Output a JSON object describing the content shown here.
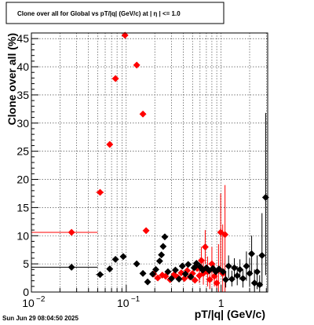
{
  "chart_data": {
    "type": "scatter",
    "title": "Clone  over all for Global vs pT/|q| (GeV/c) at |  η  | <= 1.0",
    "xlabel": "pT/|q| (GeV/c)",
    "ylabel": "Clone  over all (%)",
    "xscale": "log",
    "xlim": [
      0.01,
      3.1
    ],
    "ylim": [
      0,
      46
    ],
    "x_ticks": [
      {
        "v": 0.01,
        "label": "10"
      },
      {
        "v": 0.1,
        "label": "10"
      },
      {
        "v": 1,
        "label": "1"
      }
    ],
    "x_tick_exponents": [
      "−2",
      "−1",
      ""
    ],
    "y_ticks": [
      0,
      5,
      10,
      15,
      20,
      25,
      30,
      35,
      40,
      45
    ],
    "grid": true,
    "timestamp": "Sun Jun 29 08:04:50 2025",
    "series": [
      {
        "color": "#ff0000",
        "marker": "diamond",
        "points": [
          {
            "x": 0.0265,
            "y": 10.6,
            "xlo": 0.01,
            "xhi": 0.05
          },
          {
            "x": 0.053,
            "y": 17.7,
            "xlo": 0.048,
            "xhi": 0.058
          },
          {
            "x": 0.067,
            "y": 26.2
          },
          {
            "x": 0.077,
            "y": 37.9
          },
          {
            "x": 0.097,
            "y": 45.6
          },
          {
            "x": 0.129,
            "y": 40.3
          },
          {
            "x": 0.15,
            "y": 31.6
          },
          {
            "x": 0.162,
            "y": 10.9
          },
          {
            "x": 0.195,
            "y": 3.2
          },
          {
            "x": 0.215,
            "y": 2.5
          },
          {
            "x": 0.24,
            "y": 3.0
          },
          {
            "x": 0.26,
            "y": 2.8
          },
          {
            "x": 0.29,
            "y": 2.2
          },
          {
            "x": 0.32,
            "y": 3.1
          },
          {
            "x": 0.35,
            "y": 2.6
          },
          {
            "x": 0.38,
            "y": 3.4
          },
          {
            "x": 0.41,
            "y": 2.4
          },
          {
            "x": 0.44,
            "y": 3.8
          },
          {
            "x": 0.47,
            "y": 2.7
          },
          {
            "x": 0.5,
            "y": 3.3
          },
          {
            "x": 0.53,
            "y": 2.1
          },
          {
            "x": 0.56,
            "y": 4.2
          },
          {
            "x": 0.59,
            "y": 2.9,
            "ylo": 1.6,
            "yhi": 4.4
          },
          {
            "x": 0.62,
            "y": 5.6,
            "ylo": 3.4,
            "yhi": 8.0
          },
          {
            "x": 0.65,
            "y": 3.3,
            "ylo": 1.3,
            "yhi": 5.6
          },
          {
            "x": 0.68,
            "y": 8.0,
            "ylo": 5.0,
            "yhi": 11.0
          },
          {
            "x": 0.72,
            "y": 3.6,
            "ylo": 1.0,
            "yhi": 6.3
          },
          {
            "x": 0.76,
            "y": 2.2,
            "ylo": 0.5,
            "yhi": 4.0
          },
          {
            "x": 0.8,
            "y": 5.0,
            "ylo": 2.0,
            "yhi": 8.0
          },
          {
            "x": 0.85,
            "y": 2.8,
            "ylo": 1.0,
            "yhi": 4.8
          },
          {
            "x": 0.9,
            "y": 1.6,
            "ylo": 0.4,
            "yhi": 3.5
          },
          {
            "x": 0.94,
            "y": 3.9,
            "ylo": 0.0,
            "yhi": 8.5
          },
          {
            "x": 0.99,
            "y": 10.6,
            "ylo": 3.5,
            "yhi": 17.5
          },
          {
            "x": 1.04,
            "y": 3.3,
            "ylo": 0.0,
            "yhi": 12.0
          },
          {
            "x": 1.1,
            "y": 10.2,
            "ylo": 0.0,
            "yhi": 19.0
          }
        ]
      },
      {
        "color": "#000000",
        "marker": "diamond",
        "points": [
          {
            "x": 0.0265,
            "y": 4.4,
            "xlo": 0.01,
            "xhi": 0.05
          },
          {
            "x": 0.053,
            "y": 3.1,
            "xlo": 0.048,
            "xhi": 0.058
          },
          {
            "x": 0.067,
            "y": 4.1
          },
          {
            "x": 0.077,
            "y": 5.8
          },
          {
            "x": 0.093,
            "y": 6.3
          },
          {
            "x": 0.129,
            "y": 5.0
          },
          {
            "x": 0.15,
            "y": 3.3
          },
          {
            "x": 0.168,
            "y": 1.8
          },
          {
            "x": 0.19,
            "y": 3.2
          },
          {
            "x": 0.205,
            "y": 4.0
          },
          {
            "x": 0.225,
            "y": 5.5
          },
          {
            "x": 0.235,
            "y": 6.6
          },
          {
            "x": 0.245,
            "y": 8.1
          },
          {
            "x": 0.255,
            "y": 9.8
          },
          {
            "x": 0.275,
            "y": 3.6
          },
          {
            "x": 0.3,
            "y": 2.4
          },
          {
            "x": 0.33,
            "y": 3.9
          },
          {
            "x": 0.36,
            "y": 2.3
          },
          {
            "x": 0.39,
            "y": 4.6
          },
          {
            "x": 0.42,
            "y": 3.2
          },
          {
            "x": 0.45,
            "y": 4.9
          },
          {
            "x": 0.48,
            "y": 2.7
          },
          {
            "x": 0.52,
            "y": 4.3
          },
          {
            "x": 0.55,
            "y": 5.1
          },
          {
            "x": 0.6,
            "y": 4.5
          },
          {
            "x": 0.64,
            "y": 3.9
          },
          {
            "x": 0.7,
            "y": 4.3
          },
          {
            "x": 0.75,
            "y": 3.8
          },
          {
            "x": 0.82,
            "y": 4.2
          },
          {
            "x": 0.88,
            "y": 3.6
          },
          {
            "x": 0.95,
            "y": 4.1
          },
          {
            "x": 1.05,
            "y": 3.6
          },
          {
            "x": 1.12,
            "y": 2.2,
            "ylo": 0.8,
            "yhi": 3.5
          },
          {
            "x": 1.2,
            "y": 4.6,
            "ylo": 2.5,
            "yhi": 6.5
          },
          {
            "x": 1.3,
            "y": 2.3,
            "ylo": 1.0,
            "yhi": 3.8
          },
          {
            "x": 1.38,
            "y": 4.3,
            "ylo": 2.5,
            "yhi": 6.0
          },
          {
            "x": 1.48,
            "y": 2.9,
            "ylo": 1.2,
            "yhi": 4.6
          },
          {
            "x": 1.58,
            "y": 4.0,
            "ylo": 2.2,
            "yhi": 5.8
          },
          {
            "x": 1.7,
            "y": 2.4,
            "ylo": 0.8,
            "yhi": 4.0
          },
          {
            "x": 1.85,
            "y": 4.6,
            "ylo": 2.0,
            "yhi": 7.2
          },
          {
            "x": 2.0,
            "y": 3.3,
            "ylo": 1.0,
            "yhi": 6.0
          },
          {
            "x": 2.1,
            "y": 6.8,
            "ylo": 3.0,
            "yhi": 10.0
          },
          {
            "x": 2.25,
            "y": 1.6,
            "ylo": 0.0,
            "yhi": 4.0
          },
          {
            "x": 2.4,
            "y": 3.6,
            "ylo": 0.5,
            "yhi": 6.5
          },
          {
            "x": 2.55,
            "y": 1.3,
            "ylo": 0.0,
            "yhi": 3.0
          },
          {
            "x": 2.7,
            "y": 6.5,
            "ylo": 1.0,
            "yhi": 14.0
          },
          {
            "x": 2.95,
            "y": 16.8,
            "ylo": 3.0,
            "yhi": 31.8
          }
        ]
      }
    ]
  }
}
